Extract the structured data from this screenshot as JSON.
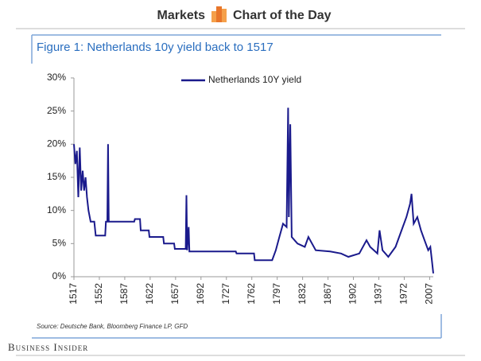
{
  "header": {
    "left": "Markets",
    "right": "Chart of the Day"
  },
  "brand": "Business Insider",
  "chart_data": {
    "type": "line",
    "title": "Figure 1: Netherlands 10y yield back to 1517",
    "source": "Source: Deutsche Bank, Bloomberg Finance LP, GFD",
    "x": [
      1517,
      1519,
      1521,
      1523,
      1525,
      1527,
      1529,
      1531,
      1533,
      1535,
      1537,
      1540,
      1545,
      1547,
      1560,
      1561,
      1563,
      1564,
      1565,
      1600,
      1601,
      1608,
      1609,
      1620,
      1621,
      1640,
      1641,
      1655,
      1656,
      1671,
      1672,
      1673,
      1675,
      1676,
      1740,
      1741,
      1765,
      1766,
      1790,
      1795,
      1800,
      1805,
      1810,
      1812,
      1813,
      1815,
      1817,
      1825,
      1835,
      1840,
      1850,
      1870,
      1885,
      1895,
      1910,
      1920,
      1925,
      1935,
      1938,
      1942,
      1950,
      1960,
      1970,
      1975,
      1980,
      1982,
      1985,
      1990,
      1995,
      2000,
      2005,
      2008,
      2010,
      2012
    ],
    "series": [
      {
        "name": "Netherlands 10Y yield",
        "color": "#1a1a8c",
        "values": [
          20,
          17,
          19,
          12,
          19.5,
          13,
          16,
          13,
          15,
          12,
          10,
          8.3,
          8.3,
          6.2,
          6.2,
          8.3,
          8.3,
          20,
          8.3,
          8.3,
          8.7,
          8.7,
          7,
          7,
          6,
          6,
          5,
          5,
          4.2,
          4.2,
          12.3,
          4,
          7.5,
          3.8,
          3.8,
          3.5,
          3.5,
          2.5,
          2.5,
          4,
          6,
          8,
          7.5,
          25.5,
          9,
          23,
          6,
          5,
          4.5,
          6,
          4,
          3.8,
          3.5,
          3,
          3.5,
          5.5,
          4.5,
          3.5,
          7,
          4,
          3,
          4.5,
          7.5,
          9,
          11,
          12.5,
          8,
          9,
          7,
          5.5,
          4,
          4.5,
          2.5,
          0.5
        ]
      }
    ],
    "xlim": [
      1517,
      2012
    ],
    "xticks": [
      1517,
      1552,
      1587,
      1622,
      1657,
      1692,
      1727,
      1762,
      1797,
      1832,
      1867,
      1902,
      1937,
      1972,
      2007
    ],
    "ylim": [
      0,
      30
    ],
    "yticks": [
      {
        "value": 0,
        "label": "0%"
      },
      {
        "value": 5,
        "label": "5%"
      },
      {
        "value": 10,
        "label": "10%"
      },
      {
        "value": 15,
        "label": "15%"
      },
      {
        "value": 20,
        "label": "20%"
      },
      {
        "value": 25,
        "label": "25%"
      },
      {
        "value": 30,
        "label": "30%"
      }
    ]
  }
}
